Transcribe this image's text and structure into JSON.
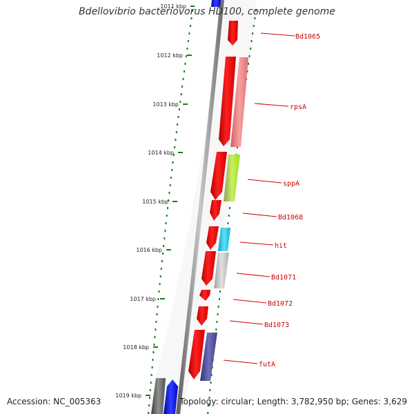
{
  "title": "Bdellovibrio bacteriovorus HD100, complete genome",
  "footer": {
    "accession": "Accession: NC_005363",
    "summary": "Topology: circular; Length: 3,782,950 bp; Genes: 3,629"
  },
  "scale_labels": [
    "1011 kbp",
    "1012 kbp",
    "1013 kbp",
    "1014 kbp",
    "1015 kbp",
    "1016 kbp",
    "1017 kbp",
    "1018 kbp",
    "1019 kbp"
  ],
  "gene_labels": [
    "Bd1065",
    "rpsA",
    "sppA",
    "Bd1068",
    "hit",
    "Bd1071",
    "Bd1072",
    "Bd1073",
    "futA"
  ],
  "colors": {
    "gene_forward": "#ff0000",
    "backbone": "#808080",
    "tick": "#1a7a1a",
    "label": "#cc0000",
    "cog_rpsA": "#f08080",
    "cog_sppA": "#a0e040",
    "cog_hit": "#20c0e0",
    "cog_Bd1071": "#c0c0c0",
    "cog_futA": "#5050a0",
    "gene_blue": "#0000ff",
    "gene_dark": "#555555"
  }
}
